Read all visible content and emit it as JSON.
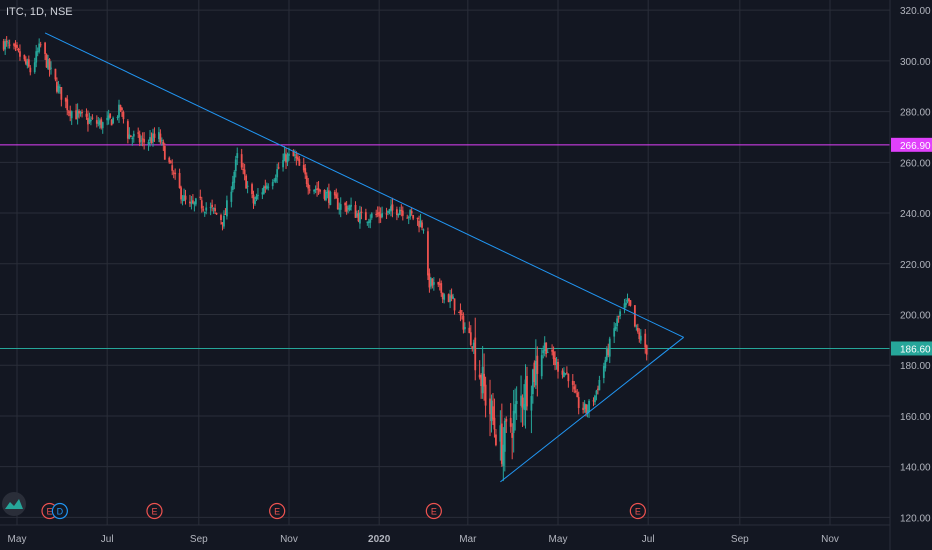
{
  "header": {
    "title": "ITC, 1D, NSE"
  },
  "colors": {
    "background": "#131722",
    "grid": "#2a2e39",
    "up": "#26a69a",
    "down": "#ef5350",
    "trendline": "#2196f3",
    "resistance": "#e040fb",
    "price_line": "#26a69a",
    "axis_text": "#b2b5be",
    "event_earnings": "#ef5350",
    "event_dividend": "#2196f3"
  },
  "chart_data": {
    "type": "candlestick",
    "title": "ITC, 1D, NSE",
    "x_ticks": [
      "May",
      "Jul",
      "Sep",
      "Nov",
      "2020",
      "Mar",
      "May",
      "Jul",
      "Sep",
      "Nov"
    ],
    "x_tick_dates": [
      "2019-05-01",
      "2019-07-01",
      "2019-09-01",
      "2019-11-01",
      "2020-01-01",
      "2020-03-01",
      "2020-05-01",
      "2020-07-01",
      "2020-09-01",
      "2020-11-01"
    ],
    "y_ticks": [
      "120.00",
      "140.00",
      "160.00",
      "180.00",
      "200.00",
      "220.00",
      "240.00",
      "260.00",
      "280.00",
      "300.00",
      "320.00"
    ],
    "ylim": [
      117,
      324
    ],
    "price_levels": [
      {
        "label": "266.90",
        "value": 266.9,
        "color": "#e040fb"
      },
      {
        "label": "186.60",
        "value": 186.6,
        "color": "#26a69a"
      }
    ],
    "trendlines": [
      {
        "name": "descending",
        "points": [
          [
            "2019-05-20",
            311
          ],
          [
            "2020-07-25",
            191
          ]
        ]
      },
      {
        "name": "ascending",
        "points": [
          [
            "2020-03-23",
            134
          ],
          [
            "2020-07-25",
            191
          ]
        ]
      }
    ],
    "price_path": [
      [
        "2019-04-22",
        307
      ],
      [
        "2019-05-03",
        302
      ],
      [
        "2019-05-10",
        296
      ],
      [
        "2019-05-17",
        306
      ],
      [
        "2019-05-22",
        298
      ],
      [
        "2019-05-28",
        290
      ],
      [
        "2019-06-05",
        281
      ],
      [
        "2019-06-12",
        278
      ],
      [
        "2019-06-20",
        276
      ],
      [
        "2019-06-28",
        275
      ],
      [
        "2019-07-05",
        277
      ],
      [
        "2019-07-10",
        281
      ],
      [
        "2019-07-15",
        271
      ],
      [
        "2019-07-25",
        268
      ],
      [
        "2019-08-05",
        270
      ],
      [
        "2019-08-10",
        262
      ],
      [
        "2019-08-18",
        250
      ],
      [
        "2019-08-25",
        242
      ],
      [
        "2019-09-01",
        244
      ],
      [
        "2019-09-10",
        241
      ],
      [
        "2019-09-18",
        237
      ],
      [
        "2019-09-22",
        248
      ],
      [
        "2019-09-27",
        262
      ],
      [
        "2019-10-03",
        252
      ],
      [
        "2019-10-08",
        244
      ],
      [
        "2019-10-15",
        250
      ],
      [
        "2019-10-22",
        255
      ],
      [
        "2019-10-30",
        262
      ],
      [
        "2019-11-05",
        262
      ],
      [
        "2019-11-08",
        258
      ],
      [
        "2019-11-15",
        251
      ],
      [
        "2019-11-25",
        248
      ],
      [
        "2019-12-05",
        243
      ],
      [
        "2019-12-12",
        242
      ],
      [
        "2019-12-20",
        238
      ],
      [
        "2019-12-28",
        239
      ],
      [
        "2020-01-07",
        240
      ],
      [
        "2020-01-15",
        242
      ],
      [
        "2020-01-25",
        238
      ],
      [
        "2020-01-31",
        235
      ],
      [
        "2020-02-03",
        213
      ],
      [
        "2020-02-10",
        210
      ],
      [
        "2020-02-20",
        205
      ],
      [
        "2020-02-28",
        195
      ],
      [
        "2020-03-05",
        188
      ],
      [
        "2020-03-12",
        170
      ],
      [
        "2020-03-18",
        158
      ],
      [
        "2020-03-24",
        148
      ],
      [
        "2020-03-31",
        158
      ],
      [
        "2020-04-07",
        168
      ],
      [
        "2020-04-15",
        178
      ],
      [
        "2020-04-22",
        188
      ],
      [
        "2020-04-30",
        180
      ],
      [
        "2020-05-08",
        176
      ],
      [
        "2020-05-14",
        165
      ],
      [
        "2020-05-20",
        162
      ],
      [
        "2020-05-26",
        168
      ],
      [
        "2020-06-01",
        180
      ],
      [
        "2020-06-08",
        194
      ],
      [
        "2020-06-13",
        202
      ],
      [
        "2020-06-18",
        204
      ],
      [
        "2020-06-22",
        195
      ],
      [
        "2020-06-26",
        190
      ],
      [
        "2020-06-30",
        186
      ]
    ],
    "events": [
      {
        "type": "earnings",
        "label": "E",
        "date": "2019-05-23"
      },
      {
        "type": "dividend",
        "label": "D",
        "date": "2019-05-30"
      },
      {
        "type": "earnings",
        "label": "E",
        "date": "2019-08-02"
      },
      {
        "type": "earnings",
        "label": "E",
        "date": "2019-10-24"
      },
      {
        "type": "earnings",
        "label": "E",
        "date": "2020-02-07"
      },
      {
        "type": "earnings",
        "label": "E",
        "date": "2020-06-24"
      }
    ]
  }
}
